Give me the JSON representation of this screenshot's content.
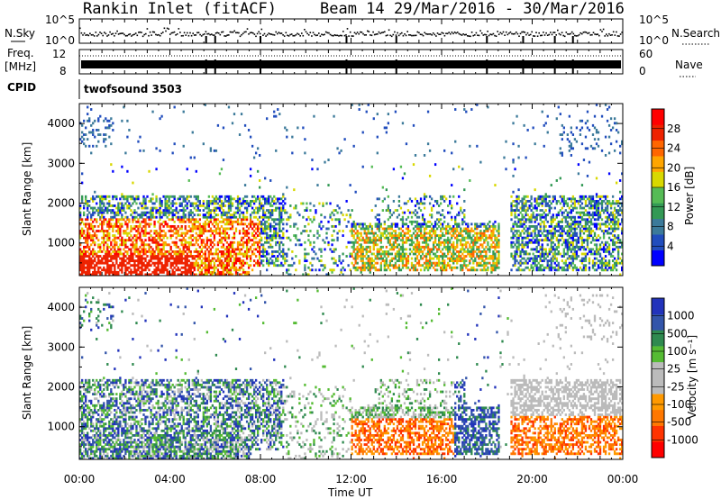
{
  "header": {
    "station": "Rankin Inlet (fitACF)",
    "beam": "Beam 14",
    "date_range": "29/Mar/2016 - 30/Mar/2016"
  },
  "summary": {
    "nsky_label": "N.Sky",
    "nsky_ticks": [
      "10^5",
      "10^0"
    ],
    "nsearch_label": "N.Search",
    "nsearch_ticks": [
      "10^5",
      "10^0"
    ],
    "freq_label": "Freq.",
    "freq_unit": "[MHz]",
    "freq_ticks": [
      "12",
      "8"
    ],
    "nave_label": "Nave",
    "nave_ticks": [
      "60",
      "0"
    ],
    "cpid_label": "CPID",
    "cpid_value": "twofsound 3503"
  },
  "colors": {
    "power": [
      "#0000ff",
      "#214dbd",
      "#3c7a9a",
      "#339955",
      "#55bb55",
      "#d8d800",
      "#ffa500",
      "#ff6600",
      "#ee2200",
      "#ff0000"
    ],
    "velocity": [
      "#ff0000",
      "#ff3300",
      "#ff7700",
      "#ff9900",
      "#bbbbbb",
      "#bbbbbb",
      "#55bb33",
      "#2f8a4f",
      "#3355aa",
      "#2233bb"
    ]
  },
  "chart_data": [
    {
      "type": "heatmap",
      "name": "power",
      "ylabel": "Slant Range [km]",
      "xlabel": "",
      "xlim_hours": [
        0,
        24
      ],
      "ylim": [
        180,
        4500
      ],
      "yticks": [
        "1000",
        "2000",
        "3000",
        "4000"
      ],
      "colorbar_label": "Power [dB]",
      "colorbar_ticks": [
        "28",
        "24",
        "20",
        "16",
        "12",
        "8",
        "4"
      ],
      "colorbar_range": [
        0,
        30
      ]
    },
    {
      "type": "heatmap",
      "name": "velocity",
      "ylabel": "Slant Range [km]",
      "xlabel": "Time UT",
      "xlim_hours": [
        0,
        24
      ],
      "ylim": [
        180,
        4500
      ],
      "yticks": [
        "1000",
        "2000",
        "3000",
        "4000"
      ],
      "xticks": [
        "00:00",
        "04:00",
        "08:00",
        "12:00",
        "16:00",
        "20:00",
        "00:00"
      ],
      "colorbar_label": "Velocity [m s⁻¹]",
      "colorbar_ticks": [
        "1000",
        "500",
        "100",
        "25",
        "-25",
        "-100",
        "-500",
        "-1000"
      ]
    }
  ]
}
